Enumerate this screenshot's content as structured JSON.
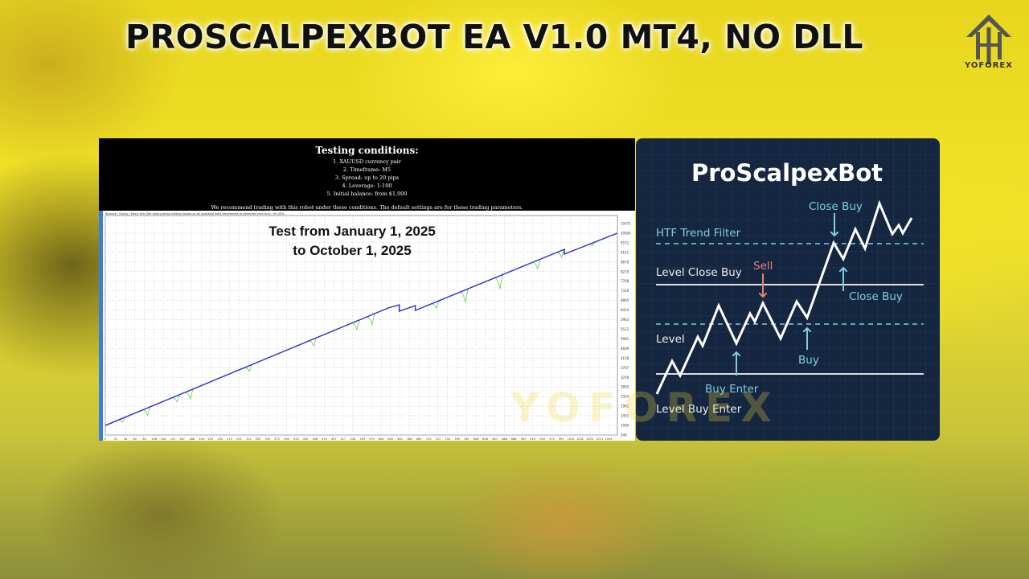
{
  "title": "PROSCALPEXBOT EA V1.0 MT4, NO DLL",
  "brand": {
    "logo_text": "YOFOREX",
    "watermark": "YOFOREX"
  },
  "conditions": {
    "heading": "Testing conditions:",
    "items": [
      "1. XAUUSD currency pair",
      "2. Timeframe: M5",
      "3. Spread: up to 20 pips",
      "4. Leverage: 1:100",
      "5. Initial balance: from $1,000"
    ],
    "recommendation": "We recommend trading with this robot under these conditions. The default settings are for these trading parameters."
  },
  "test_period": {
    "line1": "Test from January 1, 2025",
    "line2": "to October 1, 2025"
  },
  "chart_data": {
    "type": "line",
    "legend": "Balance / Equity / Every tick (the most precise method based on all available least timeframes to generate each tick) / 90.00%",
    "y_ticks": [
      549,
      1000,
      1451,
      1902,
      2354,
      2805,
      3256,
      3707,
      4158,
      4609,
      5061,
      5512,
      5963,
      6414,
      6865,
      7316,
      7768,
      8219,
      8670,
      9121,
      9572,
      10024,
      10475
    ],
    "x_ticks": [
      0,
      23,
      44,
      64,
      85,
      106,
      126,
      147,
      167,
      188,
      209,
      229,
      250,
      270,
      291,
      312,
      332,
      353,
      373,
      394,
      415,
      435,
      456,
      476,
      497,
      517,
      538,
      559,
      579,
      600,
      620,
      641,
      662,
      682,
      703,
      723,
      744,
      765,
      785,
      806,
      826,
      847,
      868,
      888,
      909,
      929,
      950,
      971,
      991,
      1012,
      1032,
      1053,
      1074,
      1094
    ],
    "ylim": [
      549,
      10475
    ],
    "xlim": [
      0,
      1094
    ],
    "grid": true,
    "series": [
      {
        "name": "Balance",
        "color": "#2a2ad0",
        "points": [
          [
            0,
            1000
          ],
          [
            615,
            6512
          ],
          [
            639,
            6663
          ],
          [
            639,
            6361
          ],
          [
            674,
            6625
          ],
          [
            674,
            6399
          ],
          [
            998,
            9267
          ],
          [
            998,
            9041
          ],
          [
            1113,
            10022
          ]
        ]
      },
      {
        "name": "Equity",
        "color": "#5ccf4a",
        "drawdowns": [
          [
            38,
            1153
          ],
          [
            92,
            1480
          ],
          [
            156,
            2096
          ],
          [
            185,
            2250
          ],
          [
            313,
            3530
          ],
          [
            453,
            4738
          ],
          [
            547,
            5493
          ],
          [
            580,
            5720
          ],
          [
            720,
            6500
          ],
          [
            783,
            6776
          ],
          [
            858,
            7418
          ],
          [
            940,
            8350
          ],
          [
            992,
            8890
          ],
          [
            1060,
            9450
          ]
        ]
      }
    ]
  },
  "diagram": {
    "title": "ProScalpexBot",
    "labels": {
      "htf": "HTF Trend Filter",
      "level_close_buy": "Level Close Buy",
      "level": "Level",
      "level_buy_enter": "Level Buy Enter",
      "buy_enter": "Buy Enter",
      "buy": "Buy",
      "sell": "Sell",
      "close_buy_top": "Close Buy",
      "close_buy_bottom": "Close Buy"
    },
    "colors": {
      "teal": "#7fd0d8",
      "sell": "#e88272",
      "line": "#ffffff",
      "background": "#142640"
    }
  }
}
